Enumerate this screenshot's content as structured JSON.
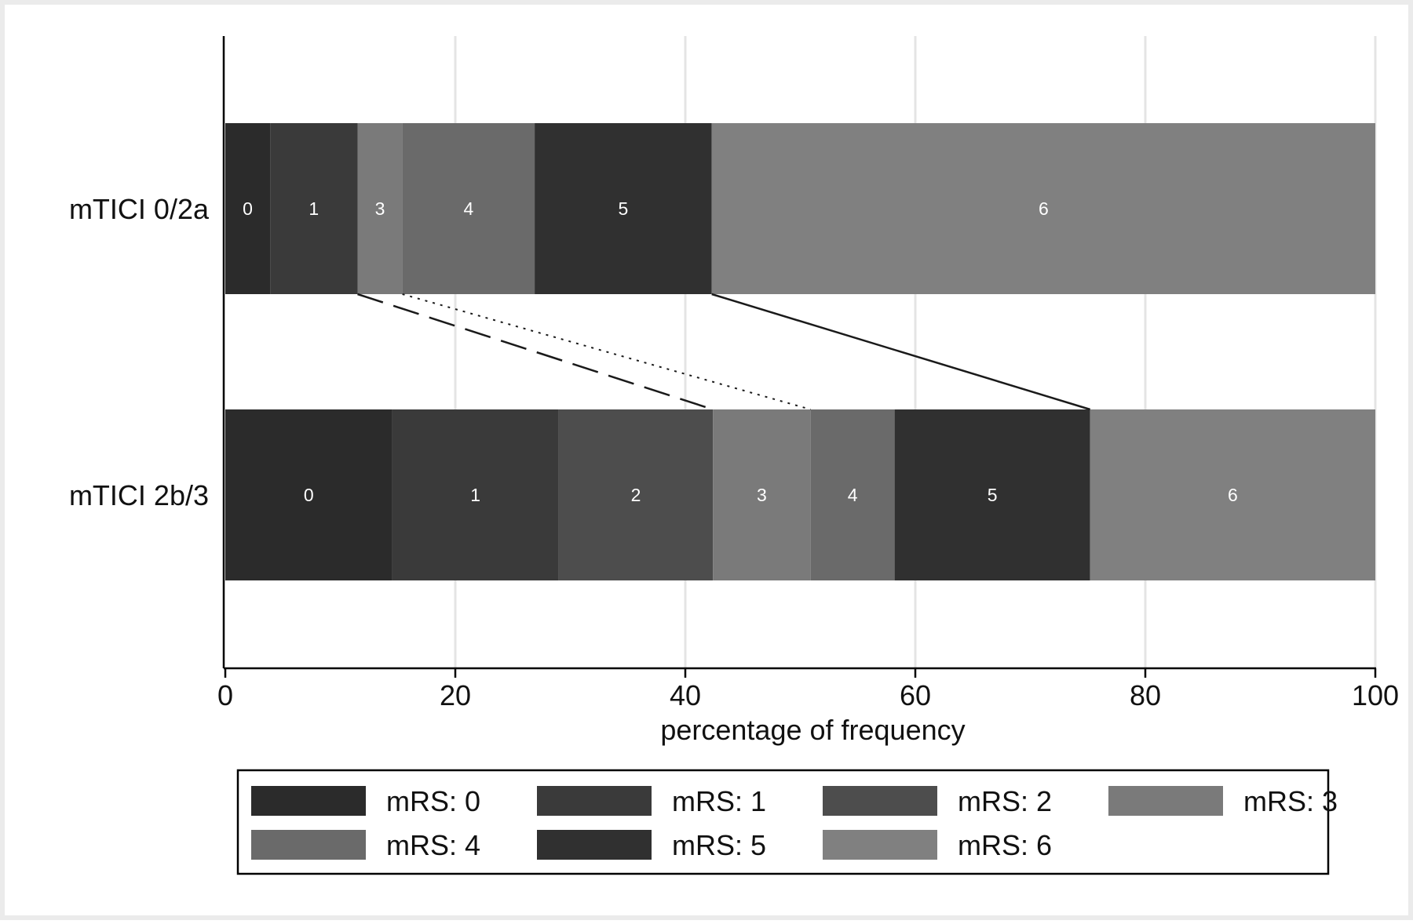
{
  "chart_data": {
    "type": "bar",
    "orientation": "horizontal",
    "stacked": true,
    "stack_mode": "percent",
    "xlabel": "percentage of frequency",
    "xlim": [
      0,
      100
    ],
    "xticks": [
      0,
      20,
      40,
      60,
      80,
      100
    ],
    "grid": true,
    "legend_position": "bottom",
    "categories": [
      "mTICI 0/2a",
      "mTICI 2b/3"
    ],
    "series": [
      {
        "name": "mRS: 0",
        "color": "#2b2b2b",
        "values": [
          3.9,
          14.5
        ]
      },
      {
        "name": "mRS: 1",
        "color": "#3a3a3a",
        "values": [
          7.6,
          14.5
        ]
      },
      {
        "name": "mRS: 2",
        "color": "#4d4d4d",
        "values": [
          0.0,
          13.4
        ]
      },
      {
        "name": "mRS: 3",
        "color": "#7a7a7a",
        "values": [
          3.9,
          8.5
        ]
      },
      {
        "name": "mRS: 4",
        "color": "#6a6a6a",
        "values": [
          11.5,
          7.3
        ]
      },
      {
        "name": "mRS: 5",
        "color": "#303030",
        "values": [
          15.4,
          17.0
        ]
      },
      {
        "name": "mRS: 6",
        "color": "#808080",
        "values": [
          57.7,
          24.8
        ]
      }
    ],
    "segment_labels": [
      "0",
      "1",
      "2",
      "3",
      "4",
      "5",
      "6"
    ],
    "connectors": [
      {
        "style": "dashed",
        "from": 11.5,
        "to": 42.4
      },
      {
        "style": "dotted",
        "from": 15.4,
        "to": 50.9
      },
      {
        "style": "solid",
        "from": 42.3,
        "to": 75.2
      }
    ]
  }
}
